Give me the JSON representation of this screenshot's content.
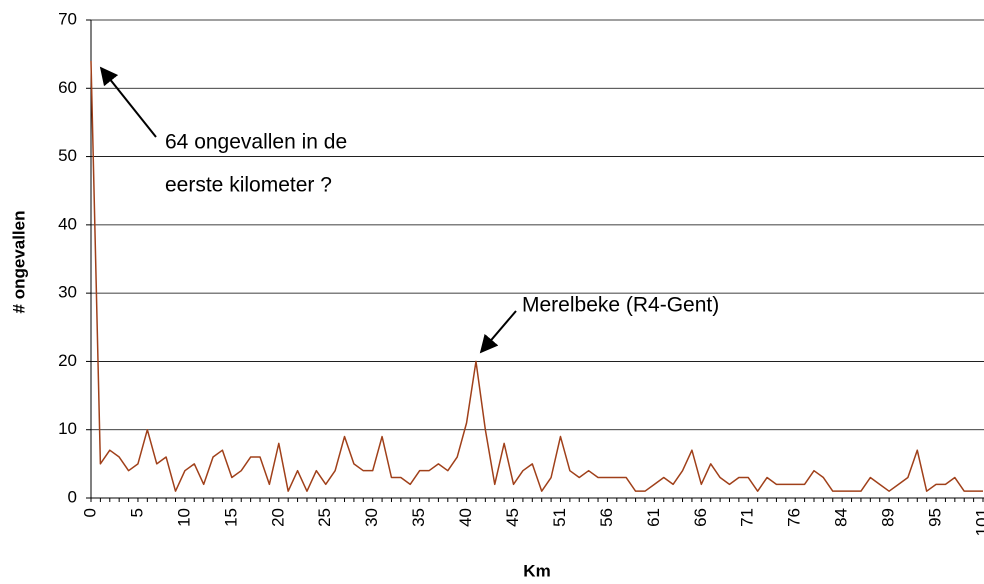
{
  "chart_data": {
    "type": "line",
    "x_label": "Km",
    "y_label": "# ongevallen",
    "annotations": [
      "64 ongevallen in de",
      "eerste kilometer ?",
      "Merelbeke (R4-Gent)"
    ],
    "categories": [
      "0",
      null,
      null,
      null,
      null,
      "5",
      null,
      null,
      null,
      null,
      "10",
      null,
      null,
      null,
      null,
      "15",
      null,
      null,
      null,
      null,
      "20",
      null,
      null,
      null,
      null,
      "25",
      null,
      null,
      null,
      null,
      "30",
      null,
      null,
      null,
      null,
      "35",
      null,
      null,
      null,
      null,
      "40",
      null,
      null,
      null,
      null,
      "45",
      null,
      null,
      null,
      null,
      "51",
      null,
      null,
      null,
      null,
      "56",
      null,
      null,
      null,
      null,
      "61",
      null,
      null,
      null,
      null,
      "66",
      null,
      null,
      null,
      null,
      "71",
      null,
      null,
      null,
      null,
      "76",
      null,
      null,
      null,
      null,
      "84",
      null,
      null,
      null,
      null,
      "89",
      null,
      null,
      null,
      null,
      "95",
      null,
      null,
      null,
      null,
      "101"
    ],
    "series": [
      {
        "name": "ongevallen",
        "color": "#a0401a",
        "values": [
          64,
          5,
          7,
          6,
          4,
          5,
          10,
          5,
          6,
          1,
          4,
          5,
          2,
          6,
          7,
          3,
          4,
          6,
          6,
          2,
          8,
          1,
          4,
          1,
          4,
          2,
          4,
          9,
          5,
          4,
          4,
          9,
          3,
          3,
          2,
          4,
          4,
          5,
          4,
          6,
          11,
          20,
          10,
          2,
          8,
          2,
          4,
          5,
          1,
          3,
          9,
          4,
          3,
          4,
          3,
          3,
          3,
          3,
          1,
          1,
          2,
          3,
          2,
          4,
          7,
          2,
          5,
          3,
          2,
          3,
          3,
          1,
          3,
          2,
          2,
          2,
          2,
          4,
          3,
          1,
          1,
          1,
          1,
          3,
          2,
          1,
          2,
          3,
          7,
          1,
          2,
          2,
          3,
          1,
          1,
          1
        ]
      }
    ],
    "ylim": [
      0,
      70
    ],
    "yticks": [
      0,
      10,
      20,
      30,
      40,
      50,
      60,
      70
    ],
    "grid": true
  }
}
